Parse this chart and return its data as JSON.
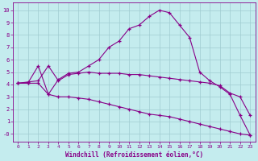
{
  "xlabel": "Windchill (Refroidissement éolien,°C)",
  "bg_color": "#c4ecee",
  "line_color": "#880088",
  "grid_color": "#a0ccd0",
  "xlim": [
    -0.5,
    23.5
  ],
  "ylim": [
    -0.6,
    10.6
  ],
  "xticks": [
    0,
    1,
    2,
    3,
    4,
    5,
    6,
    7,
    8,
    9,
    10,
    11,
    12,
    13,
    14,
    15,
    16,
    17,
    18,
    19,
    20,
    21,
    22,
    23
  ],
  "yticks": [
    0,
    1,
    2,
    3,
    4,
    5,
    6,
    7,
    8,
    9,
    10
  ],
  "ytick_labels": [
    "-0",
    "1",
    "2",
    "3",
    "4",
    "5",
    "6",
    "7",
    "8",
    "9",
    "10"
  ],
  "line1_x": [
    0,
    1,
    2,
    3,
    4,
    5,
    6,
    7,
    8,
    9,
    10,
    11,
    12,
    13,
    14,
    15,
    16,
    17,
    18,
    19,
    20,
    21,
    22,
    23
  ],
  "line1_y": [
    4.1,
    4.15,
    5.5,
    3.2,
    4.4,
    4.9,
    5.0,
    5.5,
    6.0,
    7.0,
    7.5,
    8.5,
    8.8,
    9.5,
    10.0,
    9.8,
    8.8,
    7.8,
    5.0,
    4.3,
    3.8,
    3.2,
    1.5,
    -0.1
  ],
  "line2_x": [
    0,
    1,
    2,
    3,
    4,
    5,
    6,
    7,
    8,
    9,
    10,
    11,
    12,
    13,
    14,
    15,
    16,
    17,
    18,
    19,
    20,
    21,
    22,
    23
  ],
  "line2_y": [
    4.1,
    4.2,
    4.3,
    5.5,
    4.3,
    4.8,
    4.9,
    5.0,
    4.9,
    4.9,
    4.9,
    4.8,
    4.8,
    4.7,
    4.6,
    4.5,
    4.4,
    4.3,
    4.2,
    4.1,
    3.9,
    3.3,
    3.0,
    1.5
  ],
  "line3_x": [
    0,
    1,
    2,
    3,
    4,
    5,
    6,
    7,
    8,
    9,
    10,
    11,
    12,
    13,
    14,
    15,
    16,
    17,
    18,
    19,
    20,
    21,
    22,
    23
  ],
  "line3_y": [
    4.1,
    4.1,
    4.1,
    3.2,
    3.0,
    3.0,
    2.9,
    2.8,
    2.6,
    2.4,
    2.2,
    2.0,
    1.8,
    1.6,
    1.5,
    1.4,
    1.2,
    1.0,
    0.8,
    0.6,
    0.4,
    0.2,
    0.0,
    -0.1
  ]
}
